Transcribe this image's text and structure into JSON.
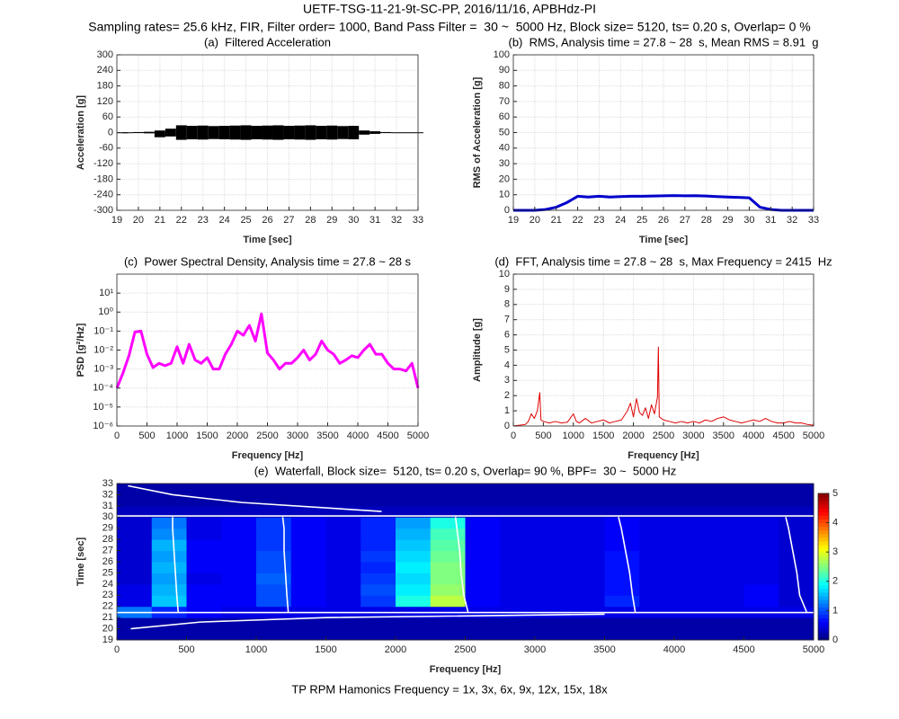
{
  "header": {
    "title": "UETF-TSG-11-21-9t-SC-PP, 2016/11/16, APBHdz-PI",
    "subtitle": "Sampling rates= 25.6 kHz, FIR, Filter order= 1000, Band Pass Filter =  30 ~  5000 Hz, Block size= 5120, ts= 0.20 s, Overlap= 0 %"
  },
  "footer": "TP RPM Hamonics Frequency = 1x, 3x, 6x, 9x, 12x, 15x, 18x",
  "chart_data": [
    {
      "type": "band",
      "title": "(a)  Filtered Acceleration",
      "x_label": "Time [sec]",
      "y_label": "Acceleration [g]",
      "x": [
        19,
        19.5,
        20,
        20.5,
        21,
        21.5,
        22,
        22.5,
        23,
        23.5,
        24,
        24.5,
        25,
        25.5,
        26,
        26.5,
        27,
        27.5,
        28,
        28.5,
        29,
        29.5,
        30,
        30.5,
        31,
        31.5,
        32,
        32.5,
        33
      ],
      "series": [
        {
          "color": "#000000",
          "values": [
            1,
            1,
            2,
            3,
            8,
            15,
            28,
            26,
            27,
            25,
            26,
            27,
            28,
            26,
            27,
            28,
            26,
            27,
            28,
            26,
            27,
            25,
            26,
            8,
            5,
            2,
            1,
            1,
            1
          ]
        },
        {
          "color": "#000000",
          "values": [
            -1,
            -1,
            -2,
            -3,
            -18,
            -15,
            -28,
            -26,
            -27,
            -25,
            -26,
            -27,
            -28,
            -26,
            -27,
            -28,
            -26,
            -27,
            -28,
            -26,
            -27,
            -25,
            -26,
            -8,
            -5,
            -2,
            -1,
            -1,
            -1
          ]
        }
      ],
      "xlim": [
        19,
        33
      ],
      "xticks": [
        19,
        20,
        21,
        22,
        23,
        24,
        25,
        26,
        27,
        28,
        29,
        30,
        31,
        32,
        33
      ],
      "ylim": [
        -300,
        300
      ],
      "yticks": [
        -300,
        -240,
        -180,
        -120,
        -60,
        0,
        60,
        120,
        180,
        240,
        300
      ],
      "grid": true
    },
    {
      "type": "line",
      "title": "(b)  RMS, Analysis time = 27.8 ~ 28  s, Mean RMS = 8.91  g",
      "x_label": "Time [sec]",
      "y_label": "RMS of Acceleration [g]",
      "x": [
        19,
        19.5,
        20,
        20.5,
        21,
        21.5,
        22,
        22.5,
        23,
        23.5,
        24,
        24.5,
        25,
        25.5,
        26,
        26.5,
        27,
        27.5,
        28,
        28.5,
        29,
        29.5,
        30,
        30.5,
        31,
        31.5,
        32,
        32.5,
        33
      ],
      "series": [
        {
          "color": "#0000cc",
          "values": [
            0,
            0,
            0,
            0.5,
            2,
            5,
            9,
            8.5,
            9,
            8.5,
            8.8,
            9,
            9,
            9.2,
            9.3,
            9.5,
            9.3,
            9.4,
            9.2,
            8.8,
            8.5,
            8.3,
            8,
            2,
            0.5,
            0,
            0,
            0,
            0
          ]
        }
      ],
      "xlim": [
        19,
        33
      ],
      "xticks": [
        19,
        20,
        21,
        22,
        23,
        24,
        25,
        26,
        27,
        28,
        29,
        30,
        31,
        32,
        33
      ],
      "ylim": [
        0,
        100
      ],
      "yticks": [
        0,
        10,
        20,
        30,
        40,
        50,
        60,
        70,
        80,
        90,
        100
      ],
      "grid": true,
      "line_width": 3
    },
    {
      "type": "line",
      "title": "(c)  Power Spectral Density, Analysis time = 27.8 ~ 28 s",
      "x_label": "Frequency [Hz]",
      "y_label": "PSD [g²/Hz]",
      "x": [
        0,
        100,
        200,
        300,
        400,
        500,
        600,
        700,
        800,
        900,
        1000,
        1100,
        1200,
        1300,
        1400,
        1500,
        1600,
        1700,
        1800,
        1900,
        2000,
        2100,
        2200,
        2300,
        2400,
        2500,
        2600,
        2700,
        2800,
        2900,
        3000,
        3100,
        3200,
        3300,
        3400,
        3500,
        3600,
        3700,
        3800,
        3900,
        4000,
        4100,
        4200,
        4300,
        4400,
        4500,
        4600,
        4700,
        4800,
        4900,
        5000
      ],
      "series": [
        {
          "color": "#ff00ff",
          "values": [
            0.0001,
            0.0006,
            0.005,
            0.09,
            0.1,
            0.006,
            0.0012,
            0.002,
            0.0015,
            0.002,
            0.015,
            0.002,
            0.02,
            0.003,
            0.002,
            0.004,
            0.001,
            0.001,
            0.006,
            0.02,
            0.1,
            0.06,
            0.2,
            0.03,
            0.8,
            0.007,
            0.003,
            0.001,
            0.002,
            0.002,
            0.004,
            0.01,
            0.003,
            0.006,
            0.03,
            0.01,
            0.006,
            0.002,
            0.003,
            0.005,
            0.004,
            0.01,
            0.02,
            0.006,
            0.006,
            0.002,
            0.001,
            0.001,
            0.0008,
            0.002,
            0.0001
          ]
        }
      ],
      "xlim": [
        0,
        5000
      ],
      "xticks": [
        0,
        500,
        1000,
        1500,
        2000,
        2500,
        3000,
        3500,
        4000,
        4500,
        5000
      ],
      "ylim": [
        1e-06,
        100
      ],
      "yscale": "log",
      "yticks": [
        {
          "value": 1e-06,
          "label": "10⁻⁶"
        },
        {
          "value": 1e-05,
          "label": "10⁻⁵"
        },
        {
          "value": 0.0001,
          "label": "10⁻⁴"
        },
        {
          "value": 0.001,
          "label": "10⁻³"
        },
        {
          "value": 0.01,
          "label": "10⁻²"
        },
        {
          "value": 0.1,
          "label": "10⁻¹"
        },
        {
          "value": 1,
          "label": "10⁰"
        },
        {
          "value": 10,
          "label": "10¹"
        }
      ],
      "grid": true,
      "line_width": 3
    },
    {
      "type": "line",
      "title": "(d)  FFT, Analysis time = 27.8 ~ 28  s, Max Frequency = 2415  Hz",
      "x_label": "Frequency [Hz]",
      "y_label": "Amplitude [g]",
      "x": [
        0,
        100,
        200,
        250,
        300,
        350,
        400,
        440,
        460,
        500,
        600,
        700,
        800,
        900,
        1000,
        1050,
        1100,
        1200,
        1300,
        1400,
        1500,
        1600,
        1700,
        1800,
        1900,
        1950,
        2000,
        2050,
        2100,
        2150,
        2200,
        2250,
        2300,
        2350,
        2400,
        2415,
        2430,
        2500,
        2600,
        2700,
        2800,
        2900,
        3000,
        3100,
        3200,
        3300,
        3400,
        3500,
        3600,
        3700,
        3800,
        3900,
        4000,
        4100,
        4200,
        4300,
        4400,
        4500,
        4600,
        4700,
        4800,
        4900,
        5000
      ],
      "series": [
        {
          "color": "#e00000",
          "values": [
            0,
            0.05,
            0.1,
            0.3,
            0.8,
            0.5,
            1.0,
            2.2,
            0.4,
            0.3,
            0.2,
            0.3,
            0.2,
            0.25,
            0.8,
            0.3,
            0.2,
            0.5,
            0.2,
            0.3,
            0.4,
            0.2,
            0.3,
            0.4,
            1.0,
            1.5,
            0.6,
            1.8,
            0.9,
            0.7,
            1.2,
            0.5,
            1.4,
            0.8,
            1.9,
            5.2,
            0.6,
            0.4,
            0.3,
            0.2,
            0.3,
            0.2,
            0.3,
            0.2,
            0.4,
            0.3,
            0.5,
            0.6,
            0.4,
            0.3,
            0.2,
            0.3,
            0.4,
            0.3,
            0.5,
            0.3,
            0.2,
            0.2,
            0.3,
            0.2,
            0.2,
            0.1,
            0.05
          ]
        }
      ],
      "xlim": [
        0,
        5000
      ],
      "xticks": [
        0,
        500,
        1000,
        1500,
        2000,
        2500,
        3000,
        3500,
        4000,
        4500,
        5000
      ],
      "ylim": [
        0,
        10
      ],
      "yticks": [
        0,
        1,
        2,
        3,
        4,
        5,
        6,
        7,
        8,
        9,
        10
      ],
      "grid": true,
      "line_width": 1
    },
    {
      "type": "heatmap",
      "title": "(e)  Waterfall, Block size=  5120, ts= 0.20 s, Overlap= 90 %, BPF=  30 ~  5000 Hz",
      "x_label": "Frequency [Hz]",
      "y_label": "Time [sec]",
      "xbins": [
        0,
        250,
        500,
        750,
        1000,
        1250,
        1500,
        1750,
        2000,
        2250,
        2500,
        2750,
        3000,
        3250,
        3500,
        3750,
        4000,
        4250,
        4500,
        4750,
        5000
      ],
      "ybins": [
        19,
        20,
        21,
        22,
        23,
        24,
        25,
        26,
        27,
        28,
        29,
        30,
        31,
        32,
        33
      ],
      "z": [
        [
          0.2,
          0.2,
          0.2,
          0.2,
          0.2,
          0.2,
          0.2,
          0.2,
          0.2,
          0.2,
          0.2,
          0.2,
          0.2,
          0.2,
          0.2,
          0.2,
          0.2,
          0.2,
          0.2,
          0.2
        ],
        [
          0.2,
          0.2,
          0.2,
          0.2,
          0.2,
          0.2,
          0.2,
          0.2,
          0.2,
          0.2,
          0.2,
          0.2,
          0.2,
          0.2,
          0.2,
          0.2,
          0.2,
          0.2,
          0.2,
          0.2
        ],
        [
          1.2,
          0.8,
          0.6,
          0.5,
          0.5,
          0.5,
          0.5,
          0.5,
          0.5,
          0.5,
          0.5,
          0.5,
          0.5,
          0.5,
          0.5,
          0.5,
          0.5,
          0.5,
          0.5,
          0.5
        ],
        [
          0.5,
          1.6,
          0.6,
          0.6,
          1.0,
          0.6,
          0.5,
          0.9,
          2.0,
          2.8,
          0.6,
          0.5,
          0.5,
          0.5,
          0.8,
          0.5,
          0.5,
          0.5,
          0.6,
          0.4
        ],
        [
          0.5,
          1.5,
          0.6,
          0.6,
          1.0,
          0.6,
          0.5,
          1.0,
          1.8,
          2.6,
          0.6,
          0.5,
          0.5,
          0.5,
          0.7,
          0.5,
          0.5,
          0.5,
          0.6,
          0.4
        ],
        [
          0.4,
          1.4,
          0.5,
          0.6,
          1.1,
          0.6,
          0.5,
          0.9,
          1.7,
          2.5,
          0.6,
          0.5,
          0.5,
          0.5,
          0.7,
          0.5,
          0.5,
          0.5,
          0.5,
          0.4
        ],
        [
          0.4,
          1.5,
          0.6,
          0.6,
          1.0,
          0.6,
          0.5,
          0.8,
          1.8,
          2.5,
          0.6,
          0.5,
          0.5,
          0.5,
          0.7,
          0.5,
          0.5,
          0.5,
          0.5,
          0.4
        ],
        [
          0.4,
          1.4,
          0.6,
          0.6,
          1.0,
          0.6,
          0.5,
          0.9,
          1.7,
          2.4,
          0.6,
          0.5,
          0.5,
          0.5,
          0.7,
          0.5,
          0.5,
          0.5,
          0.5,
          0.4
        ],
        [
          0.4,
          1.5,
          0.6,
          0.6,
          0.9,
          0.6,
          0.5,
          0.8,
          1.6,
          2.3,
          0.6,
          0.5,
          0.5,
          0.5,
          0.6,
          0.5,
          0.5,
          0.5,
          0.5,
          0.4
        ],
        [
          0.4,
          1.3,
          0.5,
          0.6,
          0.9,
          0.6,
          0.5,
          0.8,
          1.5,
          2.2,
          0.6,
          0.5,
          0.5,
          0.5,
          0.6,
          0.5,
          0.5,
          0.5,
          0.5,
          0.4
        ],
        [
          0.4,
          1.2,
          0.5,
          0.6,
          0.9,
          0.6,
          0.5,
          0.8,
          1.4,
          2.0,
          0.6,
          0.5,
          0.5,
          0.5,
          0.6,
          0.5,
          0.5,
          0.5,
          0.5,
          0.4
        ],
        [
          0.3,
          0.3,
          0.3,
          0.3,
          0.3,
          0.3,
          0.3,
          0.3,
          0.3,
          0.3,
          0.3,
          0.3,
          0.3,
          0.3,
          0.3,
          0.3,
          0.3,
          0.3,
          0.3,
          0.3
        ],
        [
          0.2,
          0.2,
          0.2,
          0.2,
          0.2,
          0.2,
          0.2,
          0.2,
          0.2,
          0.2,
          0.2,
          0.2,
          0.2,
          0.2,
          0.2,
          0.2,
          0.2,
          0.2,
          0.2,
          0.2
        ],
        [
          0.2,
          0.2,
          0.2,
          0.2,
          0.2,
          0.2,
          0.2,
          0.2,
          0.2,
          0.2,
          0.2,
          0.2,
          0.2,
          0.2,
          0.2,
          0.2,
          0.2,
          0.2,
          0.2,
          0.2
        ]
      ],
      "series": [
        {
          "color": "#ffffff",
          "x": [
            0,
            5000
          ],
          "values": [
            30.1,
            30.1
          ]
        },
        {
          "color": "#ffffff",
          "x": [
            0,
            5000
          ],
          "values": [
            21.45,
            21.45
          ]
        },
        {
          "color": "#ffffff",
          "x": [
            440,
            430,
            420,
            410,
            400,
            400
          ],
          "values": [
            21.5,
            23,
            25,
            27,
            29,
            30
          ]
        },
        {
          "color": "#ffffff",
          "x": [
            1230,
            1220,
            1210,
            1200,
            1200,
            1190
          ],
          "values": [
            21.5,
            23,
            25,
            27,
            29,
            30
          ]
        },
        {
          "color": "#ffffff",
          "x": [
            2520,
            2490,
            2470,
            2460,
            2440,
            2430
          ],
          "values": [
            21.5,
            23,
            25,
            27,
            29,
            30
          ]
        },
        {
          "color": "#ffffff",
          "x": [
            3720,
            3700,
            3680,
            3650,
            3620,
            3600
          ],
          "values": [
            21.5,
            23,
            25,
            27,
            29,
            30
          ]
        },
        {
          "color": "#ffffff",
          "x": [
            4950,
            4900,
            4880,
            4850,
            4820,
            4800
          ],
          "values": [
            21.5,
            23,
            25,
            27,
            29,
            30
          ]
        },
        {
          "color": "#ffffff",
          "x": [
            80,
            400,
            900,
            1900
          ],
          "values": [
            32.8,
            32,
            31.3,
            30.5
          ]
        },
        {
          "color": "#ffffff",
          "x": [
            100,
            600,
            1500,
            3500
          ],
          "values": [
            20,
            20.6,
            21,
            21.3
          ]
        }
      ],
      "xlim": [
        0,
        5000
      ],
      "xticks": [
        0,
        500,
        1000,
        1500,
        2000,
        2500,
        3000,
        3500,
        4000,
        4500,
        5000
      ],
      "ylim": [
        19,
        33
      ],
      "yticks": [
        19,
        20,
        21,
        22,
        23,
        24,
        25,
        26,
        27,
        28,
        29,
        30,
        31,
        32,
        33
      ],
      "grid": false,
      "colorbar": {
        "lim": [
          0,
          5
        ],
        "ticks": [
          0,
          1,
          2,
          3,
          4,
          5
        ]
      }
    }
  ]
}
